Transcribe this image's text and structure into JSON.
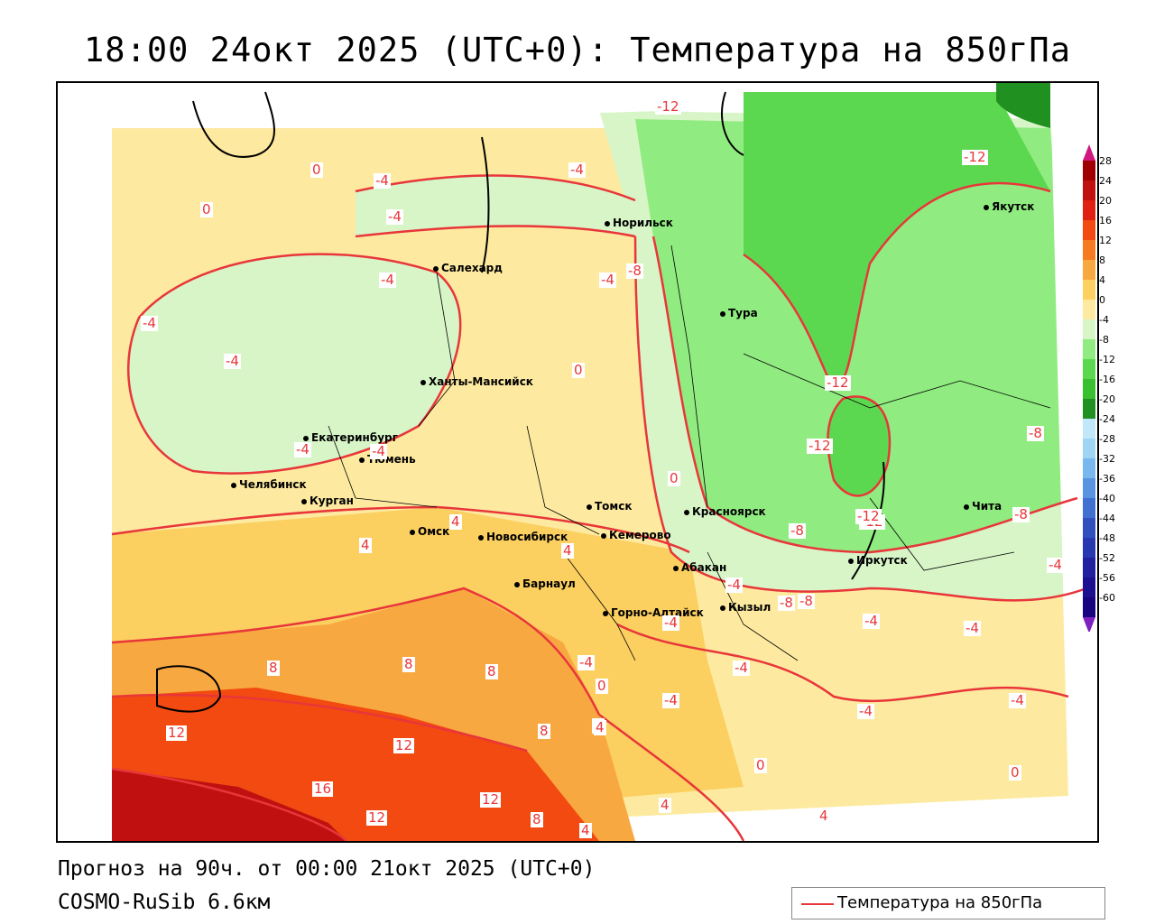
{
  "title": "18:00 24окт 2025 (UTC+0): Температура на 850гПа",
  "footer": {
    "forecast": "Прогноз на 90ч. от 00:00 21окт 2025 (UTC+0)",
    "model": "COSMO-RuSib 6.6км"
  },
  "legend": {
    "series_label": "Температура на 850гПа",
    "line_color": "#e8363a"
  },
  "color_scale": {
    "labels": [
      "28",
      "24",
      "20",
      "16",
      "12",
      "8",
      "4",
      "0",
      "-4",
      "-8",
      "-12",
      "-16",
      "-20",
      "-24",
      "-28",
      "-32",
      "-36",
      "-40",
      "-44",
      "-48",
      "-52",
      "-56",
      "-60"
    ],
    "colors": [
      "#a00000",
      "#c01010",
      "#e02010",
      "#f24a10",
      "#f67a20",
      "#f8a840",
      "#fbcf60",
      "#fdeaa0",
      "#d8f5c8",
      "#90ec80",
      "#5cd850",
      "#38c030",
      "#209020",
      "#c0e8f8",
      "#a0d4f4",
      "#78b8ee",
      "#5894e0",
      "#4070d0",
      "#3050c0",
      "#2838b0",
      "#2020a0",
      "#1c1090",
      "#180480"
    ]
  },
  "cities": [
    {
      "name": "Норильск"
    },
    {
      "name": "Салехард"
    },
    {
      "name": "Тура"
    },
    {
      "name": "Якутск"
    },
    {
      "name": "Ханты-Мансийск"
    },
    {
      "name": "Екатеринбург"
    },
    {
      "name": "Тюмень"
    },
    {
      "name": "Челябинск"
    },
    {
      "name": "Курган"
    },
    {
      "name": "Омск"
    },
    {
      "name": "Новосибирск"
    },
    {
      "name": "Томск"
    },
    {
      "name": "Кемерово"
    },
    {
      "name": "Красноярск"
    },
    {
      "name": "Барнаул"
    },
    {
      "name": "Абакан"
    },
    {
      "name": "Горно-Алтайск"
    },
    {
      "name": "Кызыл"
    },
    {
      "name": "Иркутск"
    },
    {
      "name": "Чита"
    }
  ],
  "contour_labels": [
    "-12",
    "-12",
    "0",
    "-4",
    "-4",
    "-4",
    "0",
    "-4",
    "-4",
    "-4",
    "-4",
    "-8",
    "-4",
    "-12",
    "-12",
    "-8",
    "0",
    "-4",
    "-8",
    "-12",
    "-8",
    "-8",
    "-4",
    "0",
    "-4",
    "-8",
    "-4",
    "-4",
    "-4",
    "-4",
    "-4",
    "-4",
    "-4",
    "-4",
    "4",
    "4",
    "4",
    "0",
    "4",
    "8",
    "8",
    "8",
    "8",
    "4",
    "12",
    "12",
    "12",
    "16",
    "12",
    "8",
    "4",
    "4",
    "0",
    "0",
    "4",
    "-12",
    "-4"
  ]
}
